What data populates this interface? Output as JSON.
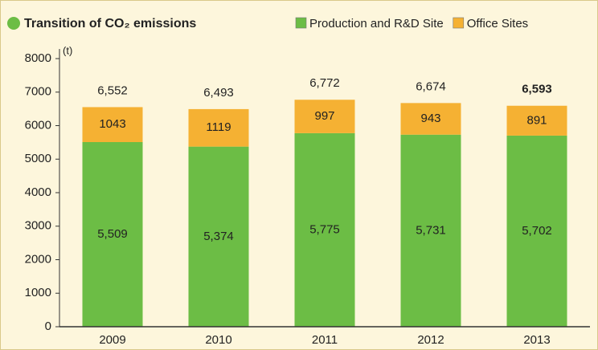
{
  "chart_data": {
    "type": "stacked_bar",
    "title": "Transition of CO₂ emissions",
    "y_label": "(t)",
    "categories": [
      "2009",
      "2010",
      "2011",
      "2012",
      "2013"
    ],
    "series": [
      {
        "name": "Production and R&D Site",
        "color": "#6cbd45",
        "values": [
          5509,
          5374,
          5775,
          5731,
          5702
        ],
        "value_labels": [
          "5,509",
          "5,374",
          "5,775",
          "5,731",
          "5,702"
        ]
      },
      {
        "name": "Office Sites",
        "color": "#f5b133",
        "values": [
          1043,
          1119,
          997,
          943,
          891
        ]
      }
    ],
    "totals": {
      "values": [
        6552,
        6493,
        6772,
        6674,
        6593
      ],
      "value_labels": [
        "6,552",
        "6,493",
        "6,772",
        "6,674",
        "6,593"
      ]
    },
    "ylim": [
      0,
      8000
    ],
    "yticks": [
      0,
      1000,
      2000,
      3000,
      4000,
      5000,
      6000,
      7000,
      8000
    ],
    "grid": false,
    "legend": "top-right"
  }
}
